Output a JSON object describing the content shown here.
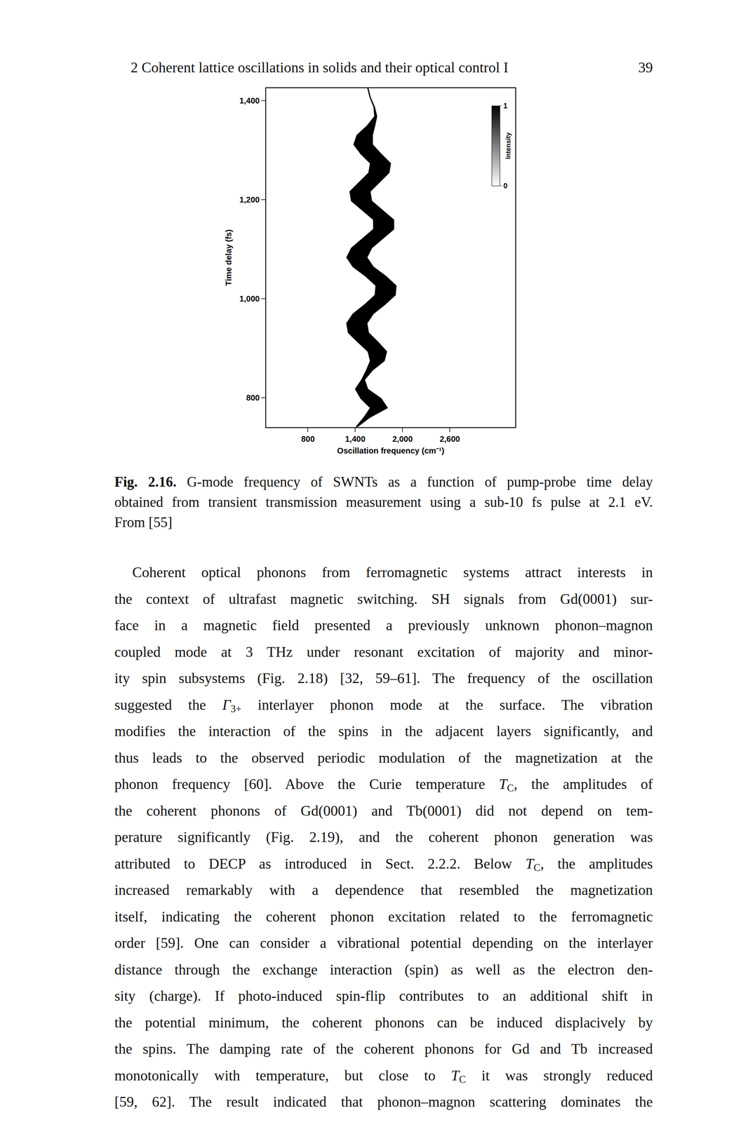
{
  "header": {
    "running_title": "2 Coherent lattice oscillations in solids and their optical control I",
    "page_number": "39"
  },
  "chart_data": {
    "type": "area",
    "x_label": "Oscillation frequency (cm⁻¹)",
    "y_label": "Time delay (fs)",
    "color": "#000000",
    "grid": false,
    "xlim": [
      270,
      3430
    ],
    "xticks": [
      800,
      {
        "value": 1400,
        "label": "1,400"
      },
      {
        "value": 2000,
        "label": "2,000"
      },
      {
        "value": 2600,
        "label": "2,600"
      }
    ],
    "ylim": [
      740,
      1425
    ],
    "yticks": [
      800,
      {
        "value": 1000,
        "label": "1,000"
      },
      {
        "value": 1200,
        "label": "1,200"
      },
      {
        "value": 1400,
        "label": "1,400"
      }
    ],
    "y": [
      1425,
      1406,
      1387,
      1368,
      1349,
      1330,
      1311,
      1292,
      1273,
      1254,
      1235,
      1216,
      1197,
      1178,
      1159,
      1140,
      1121,
      1102,
      1083,
      1064,
      1045,
      1026,
      1007,
      988,
      969,
      950,
      931,
      912,
      893,
      874,
      855,
      836,
      817,
      798,
      779,
      760,
      741
    ],
    "x_low": [
      1556,
      1586,
      1634,
      1645,
      1550,
      1420,
      1380,
      1470,
      1590,
      1570,
      1450,
      1330,
      1350,
      1490,
      1630,
      1630,
      1490,
      1350,
      1290,
      1370,
      1530,
      1660,
      1650,
      1520,
      1370,
      1290,
      1310,
      1430,
      1560,
      1590,
      1540,
      1480,
      1400,
      1470,
      1590,
      1510,
      1410
    ],
    "x_high": [
      1564,
      1594,
      1646,
      1675,
      1650,
      1620,
      1620,
      1730,
      1850,
      1830,
      1710,
      1590,
      1610,
      1750,
      1890,
      1890,
      1750,
      1610,
      1550,
      1630,
      1790,
      1920,
      1910,
      1780,
      1630,
      1550,
      1570,
      1690,
      1800,
      1770,
      1620,
      1520,
      1560,
      1730,
      1810,
      1590,
      1430
    ],
    "colorbar": {
      "title": "Intensity",
      "range": [
        0,
        1
      ],
      "ticks": [
        0,
        1
      ]
    }
  },
  "caption": {
    "label": "Fig. 2.16.",
    "lines": [
      "G-mode frequency of SWNTs as a function of pump-probe time delay",
      "obtained from transient transmission measurement using a sub-10 fs pulse at 2.1 eV.",
      "From [55]"
    ]
  },
  "body": {
    "lines": [
      [
        "Coherent optical phonons from ferromagnetic systems attract interests in"
      ],
      [
        "the context of ultrafast magnetic switching. SH signals from Gd(0001) sur-"
      ],
      [
        "face in a magnetic field presented a previously unknown phonon–magnon"
      ],
      [
        "coupled mode at 3 THz under resonant excitation of majority and minor-"
      ],
      [
        "ity spin subsystems (Fig. 2.18) [32, 59–61]. The frequency of the oscillation"
      ],
      [
        "suggested the ",
        {
          "base": "Γ",
          "sub": "3+"
        },
        " interlayer phonon mode at the surface. The vibration"
      ],
      [
        "modifies the interaction of the spins in the adjacent layers significantly, and"
      ],
      [
        "thus leads to the observed periodic modulation of the magnetization at the"
      ],
      [
        "phonon frequency [60]. Above the Curie temperature ",
        {
          "base": "T",
          "sub": "C"
        },
        ", the amplitudes of"
      ],
      [
        "the coherent phonons of Gd(0001) and Tb(0001) did not depend on tem-"
      ],
      [
        "perature significantly (Fig. 2.19), and the coherent phonon generation was"
      ],
      [
        "attributed to DECP as introduced in Sect. 2.2.2. Below ",
        {
          "base": "T",
          "sub": "C"
        },
        ", the amplitudes"
      ],
      [
        "increased remarkably with a dependence that resembled the magnetization"
      ],
      [
        "itself, indicating the coherent phonon excitation related to the ferromagnetic"
      ],
      [
        "order [59]. One can consider a vibrational potential depending on the interlayer"
      ],
      [
        "distance through the exchange interaction (spin) as well as the electron den-"
      ],
      [
        "sity (charge). If photo-induced spin-flip contributes to an additional shift in"
      ],
      [
        "the potential minimum, the coherent phonons can be induced displacively by"
      ],
      [
        "the spins. The damping rate of the coherent phonons for Gd and Tb increased"
      ],
      [
        "monotonically with temperature, but close to ",
        {
          "base": "T",
          "sub": "C"
        },
        " it was strongly reduced"
      ],
      [
        "[59, 62]. The result indicated that phonon–magnon scattering dominates the"
      ]
    ]
  }
}
